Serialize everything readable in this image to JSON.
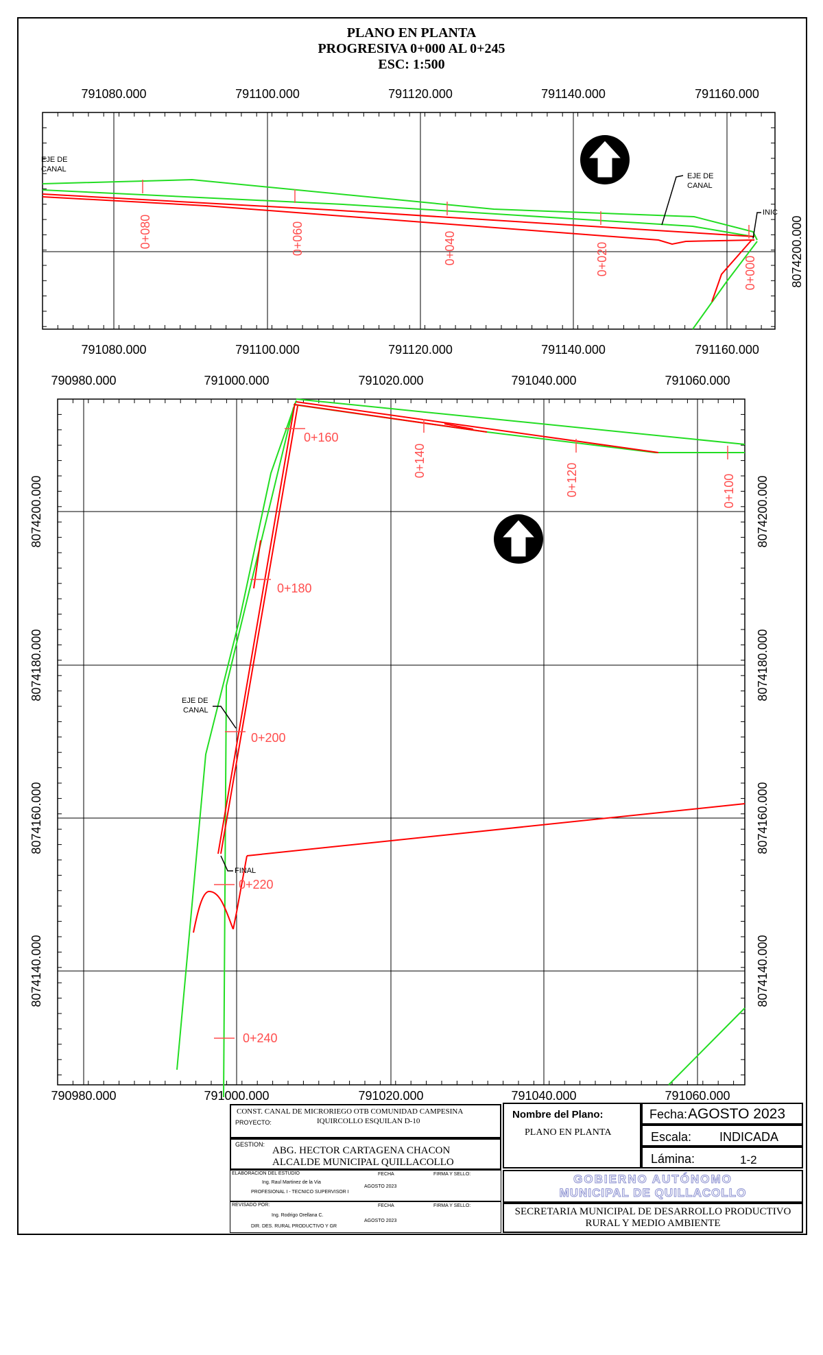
{
  "title": {
    "line1": "PLANO EN PLANTA",
    "line2": "PROGRESIVA 0+000 AL 0+245",
    "line3": "ESC: 1:500"
  },
  "top_plan": {
    "x_labels": [
      "791080.000",
      "791100.000",
      "791120.000",
      "791140.000",
      "791160.000"
    ],
    "y_labels": [
      "8074200.000"
    ],
    "stations": [
      "0+080",
      "0+060",
      "0+040",
      "0+020",
      "0+000"
    ],
    "eje_label": [
      "EJE DE",
      "CANAL"
    ],
    "eje_left": [
      "EJE DE",
      "CANAL"
    ],
    "inicio": "INIC"
  },
  "bottom_plan": {
    "x_labels": [
      "790980.000",
      "791000.000",
      "791020.000",
      "791040.000",
      "791060.000"
    ],
    "y_labels": [
      "8074200.000",
      "8074180.000",
      "8074160.000",
      "8074140.000"
    ],
    "stations": [
      "0+160",
      "0+140",
      "0+120",
      "0+100",
      "0+180",
      "0+200",
      "0+220",
      "0+240"
    ],
    "eje_label": [
      "EJE DE",
      "CANAL"
    ],
    "final": "FINAL"
  },
  "colors": {
    "canal": "#ff0000",
    "terrain": "#22dd22",
    "station": "#ff4d4d",
    "grid": "#000000"
  },
  "cartouche": {
    "project_text1": "CONST. CANAL DE MICRORIEGO  OTB COMUNIDAD CAMPESINA",
    "project_text2": "IQUIRCOLLO ESQUILAN D-10",
    "project_label": "PROYECTO:",
    "gestion_label": "GESTION:",
    "gestion_line1": "ABG. HECTOR CARTAGENA CHACON",
    "gestion_line2": "ALCALDE MUNICIPAL QUILLACOLLO",
    "elab_label": "ELABORACION DEL ESTUDIO",
    "fecha_label": "FECHA",
    "firma_label": "FIRMA Y SELLO:",
    "elab_name": "Ing. Raul Martinez de la Via",
    "elab_role": "PROFESIONAL I - TECNICO SUPERVISOR I",
    "elab_date": "AGOSTO 2023",
    "rev_label": "REVISADO POR:",
    "rev_name": "Ing. Rodrigo Orellana C.",
    "rev_role": "DIR. DES. RURAL PRODUCTIVO Y GR",
    "rev_date": "AGOSTO 2023",
    "nombre_label": "Nombre  del  Plano:",
    "nombre_value": "PLANO EN PLANTA",
    "fecha_label2": "Fecha:",
    "fecha_value": "AGOSTO 2023",
    "escala_label": "Escala:",
    "escala_value": "INDICADA",
    "lamina_label": "Lámina:",
    "lamina_value": "1-2",
    "gobierno_line1": "GOBIERNO  AUTÓNOMO",
    "gobierno_line2": "MUNICIPAL DE QUILLACOLLO",
    "secretaria_line1": "SECRETARIA MUNICIPAL DE DESARROLLO PRODUCTIVO",
    "secretaria_line2": "RURAL Y MEDIO AMBIENTE"
  }
}
